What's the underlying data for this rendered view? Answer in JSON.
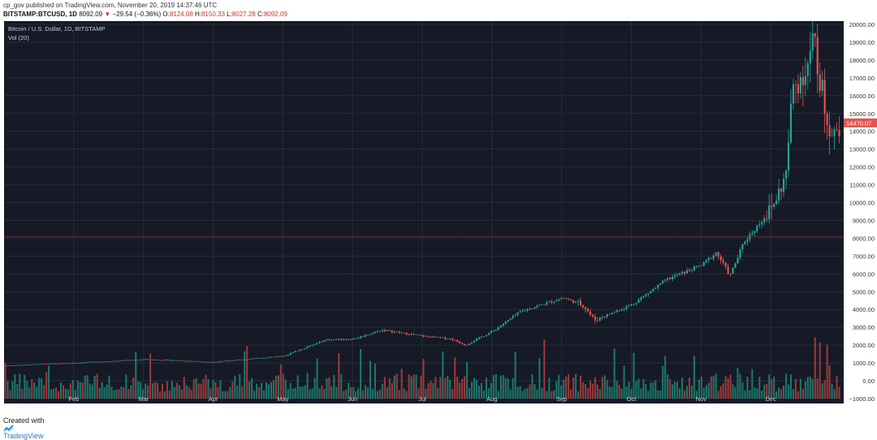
{
  "header": {
    "publisher": "cp_gov",
    "published_on": "published on TradingView.com, November 20, 2019 14:37:46 UTC",
    "symbol": "BITSTAMP:BTCUSD, 1D",
    "last": "8092.09",
    "change_arrow": "▼",
    "change": "−29.54 (−0.36%)",
    "o_label": "O:",
    "o": "8124.08",
    "h_label": "H:",
    "h": "8150.33",
    "l_label": "L:",
    "l": "8027.28",
    "c_label": "C:",
    "c": "8092.09"
  },
  "legend": {
    "title": "Bitcoin / U.S. Dollar, 1D, BITSTAMP",
    "volume": "Vol (20)"
  },
  "price_tag": "14470.07",
  "footer": {
    "created_with": "Created with",
    "brand": "TradingView",
    "brand_icon": "tradingview-logo-icon"
  },
  "colors": {
    "background": "#151a26",
    "grid": "#262c3a",
    "up": "#26a69a",
    "down": "#ef5350",
    "volume_up": "#1f7a6e",
    "volume_down": "#a33a3a",
    "price_line": "#a54a4a",
    "price_tag": "#e0564f"
  },
  "chart_data": {
    "type": "candlestick",
    "xlabel": "",
    "ylabel": "",
    "x_ticks": [
      "Feb",
      "Mar",
      "Apr",
      "May",
      "Jun",
      "Jul",
      "Aug",
      "Sep",
      "Oct",
      "Nov",
      "Dec"
    ],
    "y_ticks": [
      "20000.00",
      "19000.00",
      "18000.00",
      "17000.00",
      "16000.00",
      "15000.00",
      "14000.00",
      "13000.00",
      "12000.00",
      "11000.00",
      "10000.00",
      "9000.00",
      "8000.00",
      "7000.00",
      "6000.00",
      "5000.00",
      "4000.00",
      "3000.00",
      "2000.00",
      "1000.00",
      "0.00",
      "−1000.00"
    ],
    "ylim": [
      -1000,
      20000
    ],
    "current_price_line": 8092.09,
    "last_price": 14470.07,
    "price_anchors": [
      {
        "month": 0.0,
        "price": 850
      },
      {
        "month": 1.0,
        "price": 1000
      },
      {
        "month": 2.0,
        "price": 1200
      },
      {
        "month": 2.4,
        "price": 1150
      },
      {
        "month": 3.0,
        "price": 1050
      },
      {
        "month": 4.0,
        "price": 1400
      },
      {
        "month": 4.6,
        "price": 2300
      },
      {
        "month": 5.0,
        "price": 2350
      },
      {
        "month": 5.4,
        "price": 2850
      },
      {
        "month": 6.0,
        "price": 2500
      },
      {
        "month": 6.4,
        "price": 2350
      },
      {
        "month": 6.6,
        "price": 2000
      },
      {
        "month": 7.0,
        "price": 2800
      },
      {
        "month": 7.4,
        "price": 3900
      },
      {
        "month": 8.0,
        "price": 4650
      },
      {
        "month": 8.3,
        "price": 4250
      },
      {
        "month": 8.45,
        "price": 3400
      },
      {
        "month": 8.7,
        "price": 3800
      },
      {
        "month": 9.0,
        "price": 4300
      },
      {
        "month": 9.5,
        "price": 5700
      },
      {
        "month": 10.0,
        "price": 6500
      },
      {
        "month": 10.2,
        "price": 7200
      },
      {
        "month": 10.4,
        "price": 5900
      },
      {
        "month": 10.6,
        "price": 7800
      },
      {
        "month": 11.0,
        "price": 9700
      },
      {
        "month": 11.2,
        "price": 11500
      },
      {
        "month": 11.3,
        "price": 16500
      },
      {
        "month": 11.5,
        "price": 17500
      },
      {
        "month": 11.6,
        "price": 19300
      },
      {
        "month": 11.75,
        "price": 15500
      },
      {
        "month": 11.85,
        "price": 14000
      },
      {
        "month": 12.0,
        "price": 14470
      }
    ]
  }
}
